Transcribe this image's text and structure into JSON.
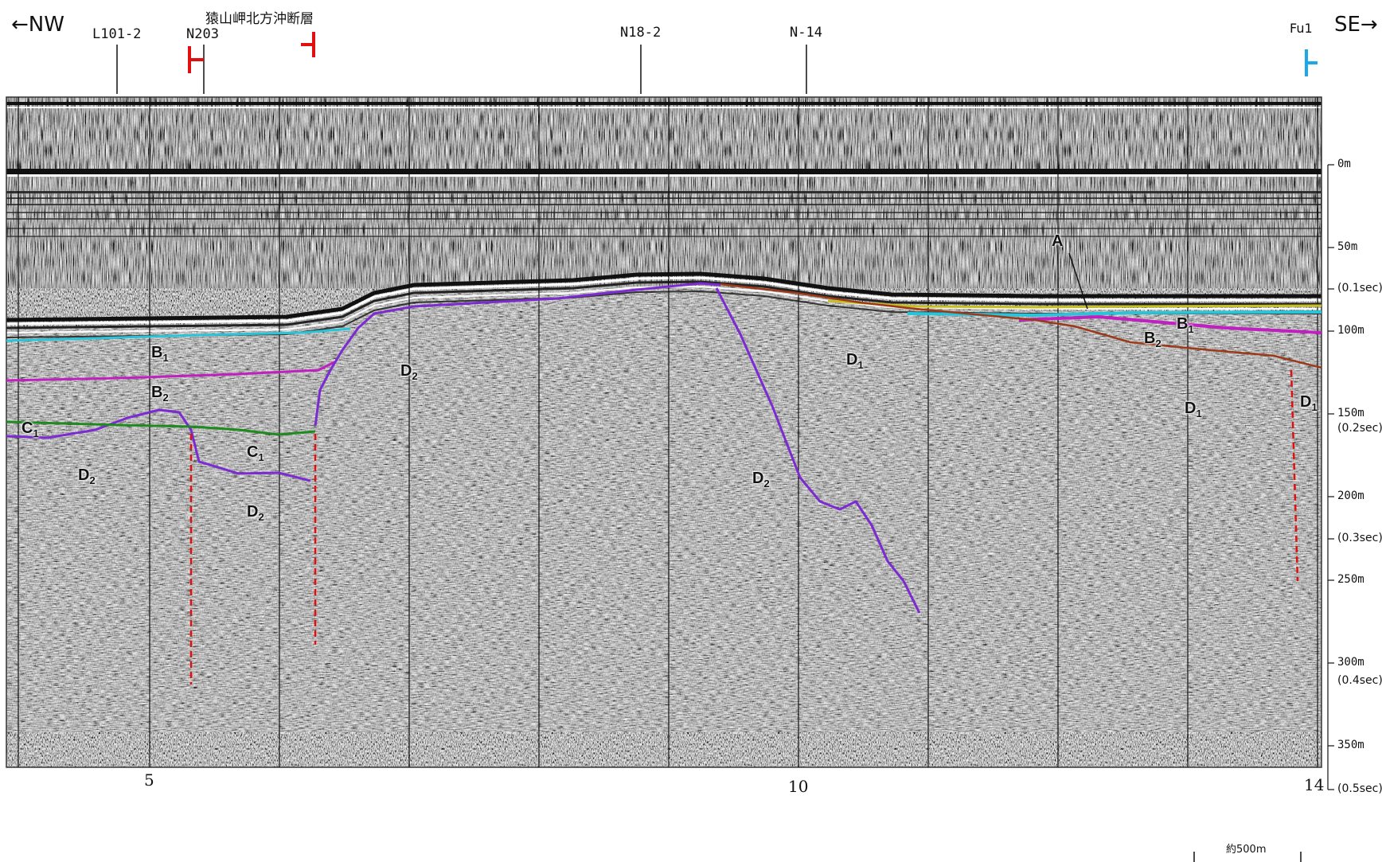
{
  "header": {
    "left_direction": "←NW",
    "right_direction": "SE→",
    "fault_name": "猿山岬北方沖断層",
    "fault_right_marker": "Fu1",
    "crossing_lines": [
      "L101-2",
      "N203",
      "N18-2",
      "N-14"
    ]
  },
  "depth_axis": {
    "labels": [
      "0m",
      "50m",
      "(0.1sec)",
      "100m",
      "150m",
      "(0.2sec)",
      "200m",
      "(0.3sec)",
      "250m",
      "300m",
      "(0.4sec)",
      "350m",
      "(0.5sec)"
    ]
  },
  "shot_points": [
    "5",
    "10",
    "14"
  ],
  "units": {
    "A": "A",
    "B1": "B",
    "B2": "B",
    "C1": "C",
    "D1": "D",
    "D2": "D",
    "sub1": "1",
    "sub2": "2"
  },
  "scale": {
    "label": "約500m"
  },
  "colors": {
    "seabed_cyan": "#29c4d8",
    "B1_base_magenta": "#c020c0",
    "C1_base_green": "#1f8a1f",
    "D_top_purple": "#7b2bd0",
    "fault_red": "#e01010",
    "fault_cyan_marker": "#1aa8e8",
    "A_base_yellow": "#c8c020",
    "B2_base_brown": "#9a3a1a"
  }
}
